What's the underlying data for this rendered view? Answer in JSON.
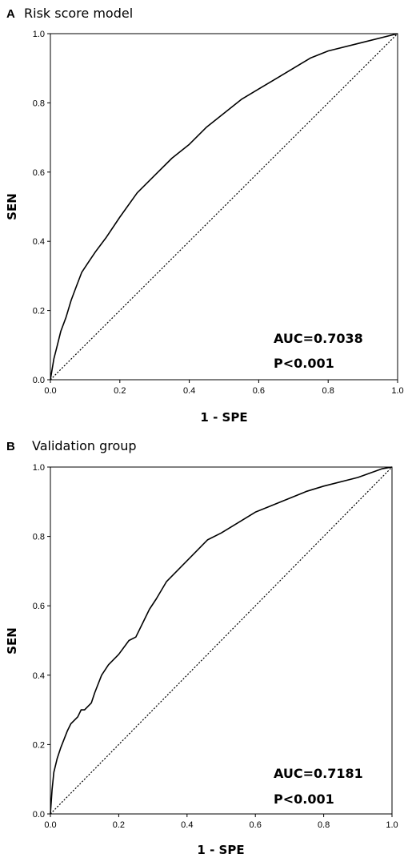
{
  "chart_data": [
    {
      "type": "line",
      "panel": "A",
      "title": "Risk score model",
      "xlabel": "1 - SPE",
      "ylabel": "SEN",
      "xlim": [
        0,
        1
      ],
      "ylim": [
        0,
        1
      ],
      "x_ticks": [
        "0.0",
        "0.2",
        "0.4",
        "0.6",
        "0.8",
        "1.0"
      ],
      "y_ticks": [
        "0.0",
        "0.2",
        "0.4",
        "0.6",
        "0.8",
        "1.0"
      ],
      "grid": false,
      "annotations": [
        "AUC=0.7038",
        "P<0.001"
      ],
      "series": [
        {
          "style": "solid",
          "x": [
            0,
            0.01,
            0.02,
            0.03,
            0.045,
            0.06,
            0.075,
            0.09,
            0.11,
            0.13,
            0.16,
            0.2,
            0.25,
            0.3,
            0.35,
            0.4,
            0.45,
            0.5,
            0.55,
            0.6,
            0.65,
            0.7,
            0.75,
            0.8,
            0.9,
            1.0
          ],
          "y": [
            0,
            0.06,
            0.1,
            0.14,
            0.18,
            0.23,
            0.27,
            0.31,
            0.34,
            0.37,
            0.41,
            0.47,
            0.54,
            0.59,
            0.64,
            0.68,
            0.73,
            0.77,
            0.81,
            0.84,
            0.87,
            0.9,
            0.93,
            0.95,
            0.975,
            1.0
          ]
        },
        {
          "style": "dotted",
          "x": [
            0,
            1
          ],
          "y": [
            0,
            1
          ]
        }
      ]
    },
    {
      "type": "line",
      "panel": "B",
      "title": "Validation group",
      "xlabel": "1 - SPE",
      "ylabel": "SEN",
      "xlim": [
        0,
        1
      ],
      "ylim": [
        0,
        1
      ],
      "x_ticks": [
        "0.0",
        "0.2",
        "0.4",
        "0.6",
        "0.8",
        "1.0"
      ],
      "y_ticks": [
        "0.0",
        "0.2",
        "0.4",
        "0.6",
        "0.8",
        "1.0"
      ],
      "grid": false,
      "annotations": [
        "AUC=0.7181",
        "P<0.001"
      ],
      "series": [
        {
          "style": "solid",
          "x": [
            0,
            0.005,
            0.01,
            0.02,
            0.03,
            0.05,
            0.06,
            0.08,
            0.09,
            0.1,
            0.12,
            0.13,
            0.15,
            0.17,
            0.2,
            0.23,
            0.25,
            0.27,
            0.29,
            0.31,
            0.34,
            0.38,
            0.42,
            0.46,
            0.5,
            0.55,
            0.6,
            0.65,
            0.7,
            0.75,
            0.8,
            0.9,
            0.97,
            1.0
          ],
          "y": [
            0,
            0.07,
            0.12,
            0.16,
            0.19,
            0.24,
            0.26,
            0.28,
            0.3,
            0.3,
            0.32,
            0.35,
            0.4,
            0.43,
            0.46,
            0.5,
            0.51,
            0.55,
            0.59,
            0.62,
            0.67,
            0.71,
            0.75,
            0.79,
            0.81,
            0.84,
            0.87,
            0.89,
            0.91,
            0.93,
            0.945,
            0.97,
            0.995,
            1.0
          ]
        },
        {
          "style": "dotted",
          "x": [
            0,
            1
          ],
          "y": [
            0,
            1
          ]
        }
      ]
    }
  ]
}
